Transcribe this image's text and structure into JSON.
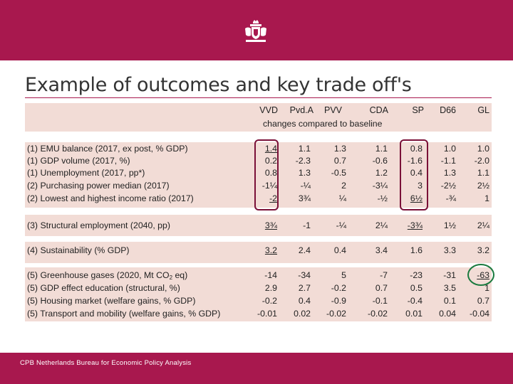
{
  "title": "Example of outcomes and key trade off's",
  "footer": "CPB Netherlands Bureau for Economic Policy Analysis",
  "crest_icon": "royal-coat-of-arms-icon",
  "subheader": "changes compared to baseline",
  "parties": [
    "VVD",
    "Pvd.A",
    "PVV",
    "CDA",
    "SP",
    "D66",
    "GL"
  ],
  "rows": [
    {
      "label": "(1) EMU balance (2017, ex post, % GDP)",
      "values": [
        "1.4",
        "1.1",
        "1.3",
        "1.1",
        "0.8",
        "1.0",
        "1.0"
      ]
    },
    {
      "label": "(1) GDP volume (2017, %)",
      "values": [
        "0.2",
        "-2.3",
        "0.7",
        "-0.6",
        "-1.6",
        "-1.1",
        "-2.0"
      ]
    },
    {
      "label": "(1) Unemployment (2017, pp*)",
      "values": [
        "0.8",
        "1.3",
        "-0.5",
        "1.2",
        "0.4",
        "1.3",
        "1.1"
      ]
    },
    {
      "label": "(2) Purchasing power median (2017)",
      "values": [
        "-1¼",
        "-¼",
        "2",
        "-3¼",
        "3",
        "-2½",
        "2½"
      ]
    },
    {
      "label": "(2) Lowest and highest income ratio (2017)",
      "values": [
        "-2",
        "3¾",
        "¼",
        "-½",
        "6½",
        "-¾",
        "1"
      ]
    },
    {
      "label": "(3) Structural employment (2040, pp)",
      "values": [
        "3¾",
        "-1",
        "-¼",
        "2¼",
        "-3¾",
        "1½",
        "2¼"
      ]
    },
    {
      "label": "(4) Sustainability (% GDP)",
      "values": [
        "3.2",
        "2.4",
        "0.4",
        "3.4",
        "1.6",
        "3.3",
        "3.2"
      ]
    },
    {
      "label_pre": "(5) Greenhouse gases (2020, Mt CO",
      "label_sub": "2",
      "label_post": " eq)",
      "values": [
        "-14",
        "-34",
        "5",
        "-7",
        "-23",
        "-31",
        "-63"
      ]
    },
    {
      "label": "(5) GDP effect education (structural, %)",
      "values": [
        "2.9",
        "2.7",
        "-0.2",
        "0.7",
        "0.5",
        "3.5",
        "1"
      ]
    },
    {
      "label": "(5) Housing market (welfare gains, % GDP)",
      "values": [
        "-0.2",
        "0.4",
        "-0.9",
        "-0.1",
        "-0.4",
        "0.1",
        "0.7"
      ]
    },
    {
      "label": "(5) Transport and mobility (welfare gains, % GDP)",
      "values": [
        "-0.01",
        "0.02",
        "-0.02",
        "-0.02",
        "0.01",
        "0.04",
        "-0.04"
      ]
    }
  ]
}
